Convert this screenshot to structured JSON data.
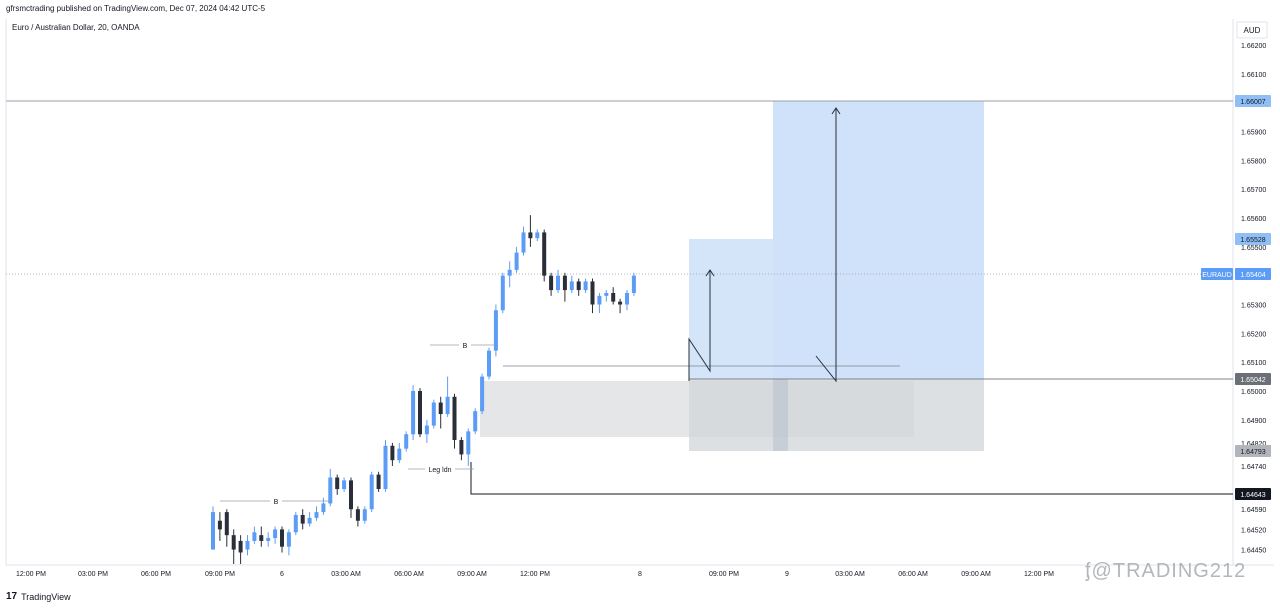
{
  "header": {
    "publisher": "gfrsmctrading published on TradingView.com, Dec 07, 2024 04:42 UTC-5"
  },
  "symbol": {
    "title": "Euro / Australian Dollar, 20, OANDA"
  },
  "footer": {
    "brand": "TradingView"
  },
  "watermark": "ᶂ@TRADING212",
  "colors": {
    "bull": "#5b9cf6",
    "bear": "#2a2e39",
    "target_zone": "#cfe2f9",
    "stop_zone": "#dde0e3",
    "price_tag": "#5b9cf6"
  },
  "chart_data": {
    "type": "candlestick",
    "currency": "AUD",
    "ylim": [
      1.644,
      1.6625
    ],
    "yticks": [
      "1.66200",
      "1.66100",
      "1.65900",
      "1.65800",
      "1.65700",
      "1.65600",
      "1.65500",
      "1.65300",
      "1.65200",
      "1.65100",
      "1.65000",
      "1.64900",
      "1.64820",
      "1.64740",
      "1.64590",
      "1.64520",
      "1.64450"
    ],
    "ytick_values": [
      1.662,
      1.661,
      1.659,
      1.658,
      1.657,
      1.656,
      1.655,
      1.653,
      1.652,
      1.651,
      1.65,
      1.649,
      1.6482,
      1.6474,
      1.6459,
      1.6452,
      1.6445
    ],
    "xticks": [
      "12:00 PM",
      "03:00 PM",
      "06:00 PM",
      "09:00 PM",
      "6",
      "03:00 AM",
      "06:00 AM",
      "09:00 AM",
      "12:00 PM",
      "8",
      "09:00 PM",
      "9",
      "03:00 AM",
      "06:00 AM",
      "09:00 AM",
      "12:00 PM"
    ],
    "price_tags": [
      {
        "label": "1.66007",
        "value": 1.66007,
        "style": "target"
      },
      {
        "label": "1.65528",
        "value": 1.65528,
        "style": "target"
      },
      {
        "label": "EURAUD",
        "value_label": "1.65404",
        "value": 1.65404,
        "style": "current"
      },
      {
        "label": "1.65042",
        "value": 1.65042,
        "style": "entry"
      },
      {
        "label": "1.64793",
        "value": 1.64793,
        "style": "stop"
      },
      {
        "label": "1.64643",
        "value": 1.64643,
        "style": "level"
      }
    ],
    "annotations": [
      {
        "text": "B",
        "value": 1.6514
      },
      {
        "text": "B",
        "value": 1.646
      },
      {
        "text": "Leg ldn",
        "value": 1.6472
      }
    ],
    "candles": [
      [
        1.6445,
        1.6458,
        1.6445,
        1.646
      ],
      [
        1.6455,
        1.6452,
        1.6448,
        1.6458
      ],
      [
        1.6458,
        1.645,
        1.6446,
        1.6459
      ],
      [
        1.645,
        1.6445,
        1.644,
        1.6452
      ],
      [
        1.6448,
        1.6444,
        1.644,
        1.645
      ],
      [
        1.6445,
        1.6448,
        1.6443,
        1.645
      ],
      [
        1.6448,
        1.6451,
        1.6447,
        1.6453
      ],
      [
        1.645,
        1.6448,
        1.6446,
        1.6453
      ],
      [
        1.6448,
        1.6449,
        1.6446,
        1.6451
      ],
      [
        1.6449,
        1.6452,
        1.6447,
        1.6453
      ],
      [
        1.6452,
        1.6446,
        1.6444,
        1.6453
      ],
      [
        1.6446,
        1.6451,
        1.6443,
        1.6452
      ],
      [
        1.6451,
        1.6457,
        1.645,
        1.6458
      ],
      [
        1.6457,
        1.6454,
        1.6452,
        1.6459
      ],
      [
        1.6454,
        1.6456,
        1.6453,
        1.6458
      ],
      [
        1.6456,
        1.6458,
        1.6455,
        1.646
      ],
      [
        1.6458,
        1.6461,
        1.6457,
        1.6463
      ],
      [
        1.6461,
        1.647,
        1.646,
        1.6473
      ],
      [
        1.647,
        1.6466,
        1.6464,
        1.6471
      ],
      [
        1.6466,
        1.6469,
        1.6465,
        1.647
      ],
      [
        1.6469,
        1.6459,
        1.6456,
        1.647
      ],
      [
        1.6459,
        1.6455,
        1.6453,
        1.646
      ],
      [
        1.6455,
        1.6459,
        1.6454,
        1.646
      ],
      [
        1.6459,
        1.6471,
        1.6458,
        1.6472
      ],
      [
        1.6471,
        1.6466,
        1.6465,
        1.6472
      ],
      [
        1.6466,
        1.6481,
        1.6465,
        1.6483
      ],
      [
        1.6481,
        1.6476,
        1.6474,
        1.6482
      ],
      [
        1.6476,
        1.648,
        1.6475,
        1.6482
      ],
      [
        1.648,
        1.6485,
        1.6479,
        1.6486
      ],
      [
        1.6485,
        1.65,
        1.6483,
        1.6502
      ],
      [
        1.65,
        1.6485,
        1.6484,
        1.6501
      ],
      [
        1.6485,
        1.6488,
        1.6482,
        1.649
      ],
      [
        1.6488,
        1.6496,
        1.6487,
        1.6497
      ],
      [
        1.6496,
        1.6492,
        1.6487,
        1.6498
      ],
      [
        1.6492,
        1.6498,
        1.6491,
        1.6505
      ],
      [
        1.6498,
        1.6483,
        1.648,
        1.6499
      ],
      [
        1.6483,
        1.6478,
        1.6476,
        1.6484
      ],
      [
        1.6478,
        1.6486,
        1.6474,
        1.6487
      ],
      [
        1.6486,
        1.6493,
        1.6485,
        1.6494
      ],
      [
        1.6493,
        1.6505,
        1.6492,
        1.6506
      ],
      [
        1.6505,
        1.6514,
        1.6504,
        1.6515
      ],
      [
        1.6514,
        1.6528,
        1.6512,
        1.653
      ],
      [
        1.6528,
        1.654,
        1.6527,
        1.6541
      ],
      [
        1.654,
        1.6542,
        1.6536,
        1.6545
      ],
      [
        1.6542,
        1.6548,
        1.6541,
        1.655
      ],
      [
        1.6548,
        1.6555,
        1.6547,
        1.6557
      ],
      [
        1.6555,
        1.6553,
        1.655,
        1.6561
      ],
      [
        1.6553,
        1.6555,
        1.6552,
        1.6556
      ],
      [
        1.6555,
        1.654,
        1.6538,
        1.6556
      ],
      [
        1.654,
        1.6535,
        1.6533,
        1.6541
      ],
      [
        1.6535,
        1.654,
        1.6534,
        1.6542
      ],
      [
        1.654,
        1.6535,
        1.6531,
        1.6541
      ],
      [
        1.6535,
        1.6538,
        1.6534,
        1.654
      ],
      [
        1.6538,
        1.6535,
        1.6533,
        1.6539
      ],
      [
        1.6535,
        1.6538,
        1.6534,
        1.6539
      ],
      [
        1.6538,
        1.653,
        1.6527,
        1.6539
      ],
      [
        1.653,
        1.6533,
        1.6527,
        1.6534
      ],
      [
        1.6533,
        1.6534,
        1.6531,
        1.6535
      ],
      [
        1.6534,
        1.6531,
        1.653,
        1.6536
      ],
      [
        1.6531,
        1.653,
        1.6527,
        1.6532
      ],
      [
        1.653,
        1.6534,
        1.6528,
        1.6535
      ],
      [
        1.6534,
        1.654,
        1.6533,
        1.6541
      ]
    ]
  }
}
